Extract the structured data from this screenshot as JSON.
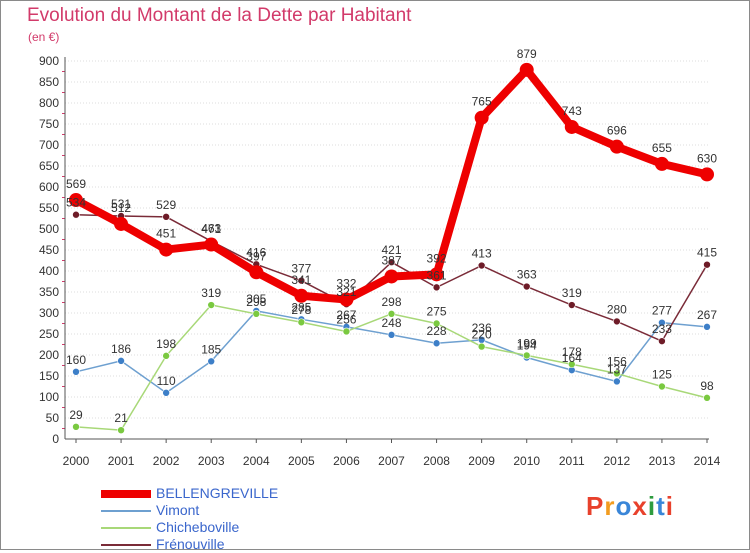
{
  "header": {
    "title": "Evolution du Montant de la Dette par Habitant",
    "subtitle": "(en €)"
  },
  "brand": {
    "logo_text": "Proxiti",
    "colors": [
      "#e8412c",
      "#f29c1f",
      "#3a86d8",
      "#e8412c",
      "#2e9c3f",
      "#3a86d8",
      "#e8412c"
    ]
  },
  "chart_data": {
    "type": "line",
    "title": "Evolution du Montant de la Dette par Habitant",
    "subtitle": "(en €)",
    "xlabel": "",
    "ylabel": "",
    "ylim": [
      0,
      900
    ],
    "yticks": [
      0,
      50,
      100,
      150,
      200,
      250,
      300,
      350,
      400,
      450,
      500,
      550,
      600,
      650,
      700,
      750,
      800,
      850,
      900
    ],
    "categories": [
      "2000",
      "2001",
      "2002",
      "2003",
      "2004",
      "2005",
      "2006",
      "2007",
      "2008",
      "2009",
      "2010",
      "2011",
      "2012",
      "2013",
      "2014"
    ],
    "grid": "horizontal",
    "legend_position": "bottom-left",
    "series": [
      {
        "name": "BELLENGREVILLE",
        "color": "#ee0000",
        "marker": "#ee0000",
        "width": 8,
        "radius": 7,
        "values": [
          569,
          512,
          451,
          463,
          397,
          341,
          332,
          387,
          392,
          765,
          879,
          743,
          696,
          655,
          630
        ]
      },
      {
        "name": "Vimont",
        "color": "#6ea0d0",
        "marker": "#3d7fc8",
        "width": 1.5,
        "radius": 3.5,
        "values": [
          160,
          186,
          110,
          185,
          305,
          285,
          267,
          248,
          228,
          236,
          194,
          164,
          137,
          277,
          267
        ]
      },
      {
        "name": "Chicheboville",
        "color": "#a8d878",
        "marker": "#7ac940",
        "width": 1.5,
        "radius": 3.5,
        "values": [
          29,
          21,
          198,
          319,
          298,
          278,
          256,
          298,
          275,
          220,
          199,
          178,
          156,
          125,
          98
        ]
      },
      {
        "name": "Frénouville",
        "color": "#7a2b38",
        "marker": "#6e1c28",
        "width": 1.5,
        "radius": 3.5,
        "values": [
          534,
          531,
          529,
          471,
          416,
          377,
          321,
          421,
          361,
          413,
          363,
          319,
          280,
          233,
          415
        ]
      }
    ]
  }
}
